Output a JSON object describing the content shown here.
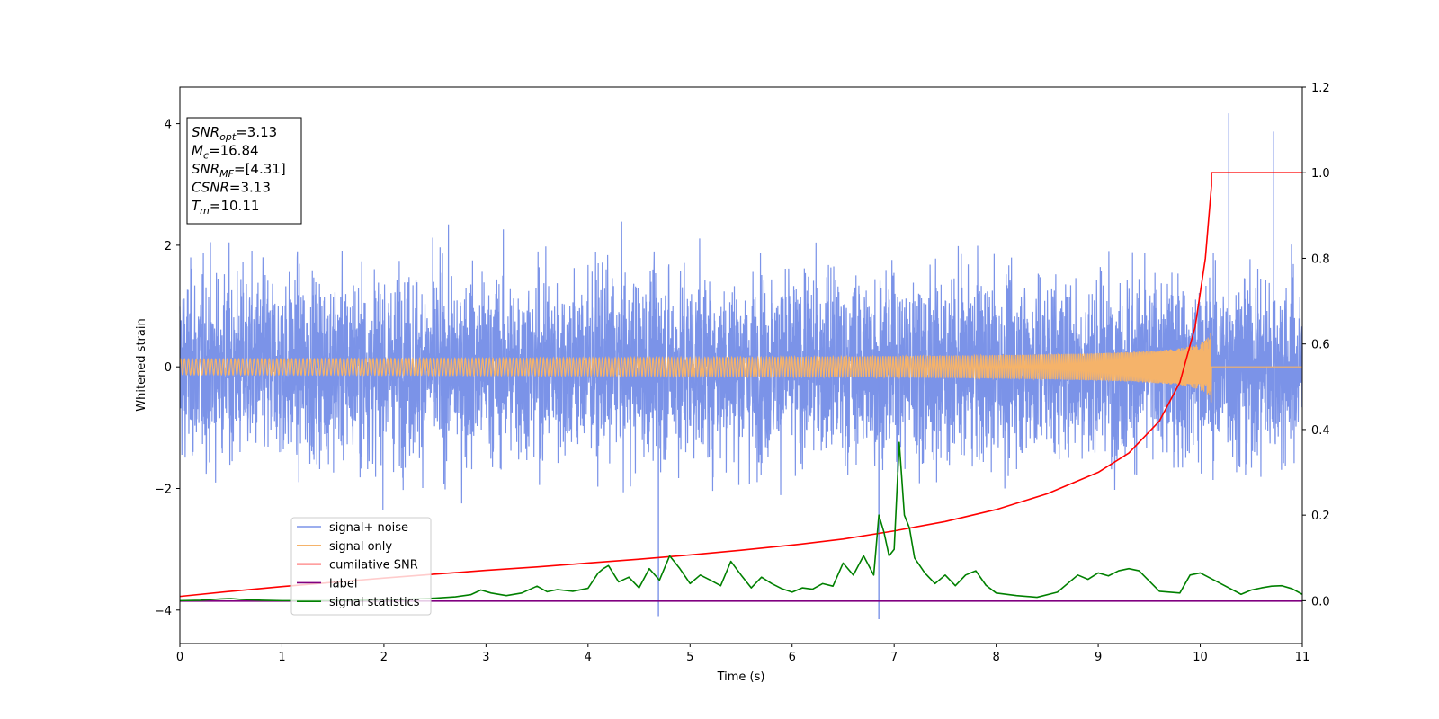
{
  "chart_data": {
    "type": "line",
    "xlabel": "Time (s)",
    "ylabel": "Whitened strain",
    "xlim": [
      0,
      11
    ],
    "ylim": [
      -4.55,
      4.6
    ],
    "y2lim": [
      -0.1,
      1.2
    ],
    "x_ticks": [
      "0",
      "1",
      "2",
      "3",
      "4",
      "5",
      "6",
      "7",
      "8",
      "9",
      "10",
      "11"
    ],
    "y_ticks": [
      "4",
      "2",
      "0",
      "−2",
      "−4"
    ],
    "y_tick_values": [
      4,
      2,
      0,
      -2,
      -4
    ],
    "y2_ticks": [
      "1.2",
      "1.0",
      "0.8",
      "0.6",
      "0.4",
      "0.2",
      "0.0"
    ],
    "y2_tick_values": [
      1.2,
      1.0,
      0.8,
      0.6,
      0.4,
      0.2,
      0.0
    ],
    "grid": false,
    "legend_position": "lower-left",
    "annotation": {
      "lines": [
        {
          "sym": "SNR",
          "sub": "opt",
          "value": "=3.13"
        },
        {
          "sym": "M",
          "sub": "c",
          "value": "=16.84"
        },
        {
          "sym": "SNR",
          "sub": "MF",
          "value": "=[4.31]"
        },
        {
          "sym": "CSNR",
          "sub": "",
          "value": "=3.13"
        },
        {
          "sym": "T",
          "sub": "m",
          "value": "=10.11"
        }
      ]
    },
    "series": [
      {
        "name": "signal+ noise",
        "color": "#7b93e8",
        "axis": "left",
        "description_stats": {
          "std": 1.0,
          "min": -4.15,
          "max": 4.17
        },
        "peaks": [
          [
            10.28,
            4.17
          ],
          [
            6.85,
            -4.15
          ],
          [
            4.69,
            -4.1
          ],
          [
            10.72,
            3.87
          ]
        ]
      },
      {
        "name": "signal only",
        "color": "#f5b36a",
        "axis": "left",
        "chirp_end": 10.11,
        "max_amplitude": 0.62
      },
      {
        "name": "cumilative SNR",
        "color": "#ff0000",
        "axis": "right",
        "x": [
          0,
          0.5,
          1,
          1.5,
          2,
          2.5,
          3,
          3.5,
          4,
          4.5,
          5,
          5.5,
          6,
          6.5,
          7,
          7.5,
          8,
          8.5,
          9,
          9.3,
          9.6,
          9.8,
          9.95,
          10.05,
          10.11,
          10.11,
          11
        ],
        "values": [
          0.01,
          0.022,
          0.033,
          0.043,
          0.053,
          0.062,
          0.071,
          0.079,
          0.088,
          0.097,
          0.107,
          0.118,
          0.13,
          0.144,
          0.163,
          0.185,
          0.213,
          0.25,
          0.3,
          0.345,
          0.42,
          0.51,
          0.64,
          0.8,
          0.97,
          1.0,
          1.0
        ]
      },
      {
        "name": "label",
        "color": "#800080",
        "axis": "right",
        "x": [
          0,
          11
        ],
        "values": [
          -0.001,
          -0.001
        ]
      },
      {
        "name": "signal statistics",
        "color": "#008000",
        "axis": "right",
        "x": [
          0,
          0.2,
          0.4,
          0.5,
          0.6,
          0.8,
          1.0,
          1.2,
          1.5,
          1.8,
          2.0,
          2.2,
          2.5,
          2.7,
          2.85,
          2.95,
          3.05,
          3.2,
          3.35,
          3.5,
          3.6,
          3.7,
          3.85,
          4.0,
          4.1,
          4.15,
          4.2,
          4.3,
          4.4,
          4.5,
          4.6,
          4.7,
          4.8,
          4.9,
          5.0,
          5.1,
          5.2,
          5.3,
          5.4,
          5.5,
          5.6,
          5.7,
          5.8,
          5.9,
          6.0,
          6.1,
          6.2,
          6.3,
          6.4,
          6.5,
          6.6,
          6.7,
          6.8,
          6.85,
          6.9,
          6.95,
          7.0,
          7.05,
          7.1,
          7.15,
          7.2,
          7.3,
          7.4,
          7.5,
          7.6,
          7.7,
          7.8,
          7.9,
          8.0,
          8.2,
          8.4,
          8.6,
          8.8,
          8.9,
          9.0,
          9.1,
          9.2,
          9.3,
          9.4,
          9.6,
          9.8,
          9.9,
          10.0,
          10.2,
          10.4,
          10.5,
          10.6,
          10.7,
          10.8,
          10.9,
          11.0
        ],
        "values": [
          0.0,
          0.001,
          0.004,
          0.005,
          0.003,
          0.001,
          0.0,
          0.0,
          0.0,
          0.001,
          0.002,
          0.003,
          0.006,
          0.009,
          0.014,
          0.025,
          0.018,
          0.012,
          0.018,
          0.034,
          0.021,
          0.026,
          0.022,
          0.029,
          0.065,
          0.075,
          0.082,
          0.044,
          0.055,
          0.03,
          0.075,
          0.048,
          0.105,
          0.075,
          0.04,
          0.06,
          0.048,
          0.035,
          0.092,
          0.06,
          0.03,
          0.055,
          0.04,
          0.028,
          0.02,
          0.03,
          0.027,
          0.04,
          0.034,
          0.088,
          0.06,
          0.105,
          0.06,
          0.2,
          0.16,
          0.105,
          0.12,
          0.37,
          0.2,
          0.17,
          0.1,
          0.065,
          0.04,
          0.06,
          0.035,
          0.06,
          0.07,
          0.036,
          0.018,
          0.012,
          0.008,
          0.02,
          0.06,
          0.05,
          0.065,
          0.058,
          0.07,
          0.075,
          0.07,
          0.022,
          0.018,
          0.06,
          0.065,
          0.04,
          0.015,
          0.025,
          0.03,
          0.034,
          0.035,
          0.028,
          0.015
        ]
      }
    ]
  }
}
